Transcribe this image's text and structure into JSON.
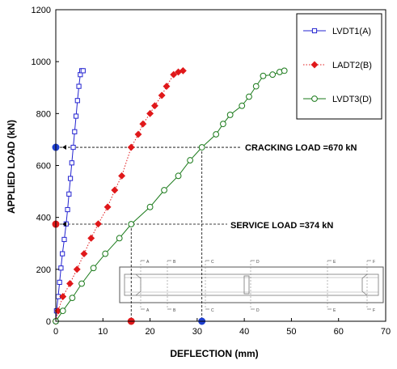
{
  "chart_data": {
    "type": "scatter",
    "xlabel": "DEFLECTION (mm)",
    "ylabel": "APPLIED LOAD (kN)",
    "xlim": [
      0,
      70
    ],
    "ylim": [
      0,
      1200
    ],
    "xticks": [
      0,
      10,
      20,
      30,
      40,
      50,
      60,
      70
    ],
    "yticks": [
      0,
      200,
      400,
      600,
      800,
      1000,
      1200
    ],
    "grid": false,
    "legend_position": "top-right",
    "series": [
      {
        "name": "LVDT1(A)",
        "color": "#2323d0",
        "marker": "open-square",
        "line": "solid",
        "x": [
          0.0,
          0.15,
          0.5,
          0.8,
          1.1,
          1.4,
          1.8,
          2.2,
          2.5,
          2.8,
          3.1,
          3.4,
          3.7,
          4.0,
          4.3,
          4.6,
          4.9,
          5.2,
          5.5,
          5.8
        ],
        "y": [
          0,
          40,
          95,
          150,
          205,
          260,
          315,
          375,
          430,
          490,
          550,
          610,
          670,
          730,
          790,
          850,
          905,
          950,
          965,
          965
        ]
      },
      {
        "name": "LADT2(B)",
        "color": "#e0181a",
        "marker": "filled-diamond",
        "line": "dotted",
        "x": [
          0.0,
          0.5,
          1.5,
          3.0,
          4.5,
          6.0,
          7.5,
          9.0,
          11.0,
          12.5,
          14.0,
          16.0,
          17.5,
          18.5,
          20.0,
          21.0,
          22.5,
          23.5,
          25.0,
          26.0,
          27.0
        ],
        "y": [
          0,
          40,
          95,
          145,
          200,
          260,
          320,
          375,
          440,
          505,
          560,
          670,
          720,
          760,
          800,
          830,
          870,
          905,
          950,
          960,
          965
        ]
      },
      {
        "name": "LVDT3(D)",
        "color": "#1a7a1a",
        "marker": "open-circle",
        "line": "solid",
        "x": [
          0.0,
          1.5,
          3.5,
          5.5,
          8.0,
          10.5,
          13.5,
          16.0,
          20.0,
          23.0,
          26.0,
          28.5,
          31.0,
          34.0,
          35.5,
          37.0,
          39.5,
          41.0,
          42.5,
          44.0,
          46.0,
          47.5,
          48.5
        ],
        "y": [
          0,
          40,
          90,
          145,
          205,
          260,
          320,
          374,
          440,
          505,
          560,
          620,
          670,
          720,
          760,
          795,
          830,
          865,
          905,
          945,
          950,
          960,
          965
        ]
      }
    ],
    "annotations": [
      {
        "text": "CRACKING LOAD =670 kN",
        "load": 670,
        "deflections": [
          16,
          31
        ]
      },
      {
        "text": "SERVICE LOAD =374 kN",
        "load": 374,
        "deflections": [
          16,
          31
        ]
      }
    ],
    "axis_markers": [
      {
        "axis": "y",
        "value": 670,
        "color": "#1f3fd0"
      },
      {
        "axis": "y",
        "value": 374,
        "color": "#e0181a"
      },
      {
        "axis": "x",
        "value": 16,
        "color": "#e0181a"
      },
      {
        "axis": "x",
        "value": 31,
        "color": "#1f3fd0"
      }
    ],
    "inset": {
      "top_labels": [
        "A",
        "B",
        "C",
        "D",
        "E",
        "F"
      ],
      "bottom_labels": [
        "A",
        "B",
        "C",
        "D",
        "E",
        "F"
      ]
    }
  }
}
